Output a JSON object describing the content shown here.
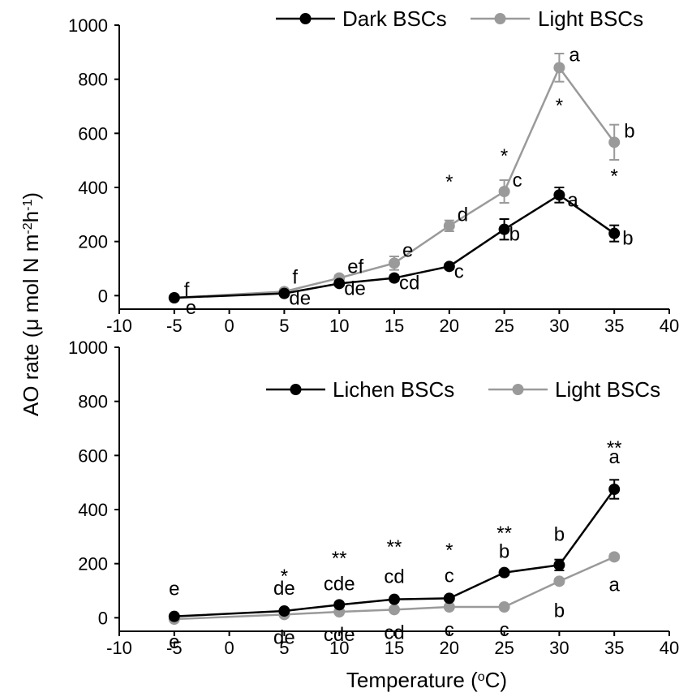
{
  "figure": {
    "ylabel_main": "AO rate (",
    "ylabel_mu": "μ",
    "ylabel_mid": " mol N m",
    "ylabel_sup1": "-2",
    "ylabel_h": "h",
    "ylabel_sup2": "-1",
    "ylabel_close": ")",
    "xlabel_main": "Temperature (",
    "xlabel_sup": "o",
    "xlabel_close": "C)"
  },
  "colors": {
    "dark": "#000000",
    "light": "#9a9a9a"
  },
  "chart_data": [
    {
      "type": "line",
      "panel": "top",
      "xlim": [
        -10,
        40
      ],
      "ylim": [
        -50,
        1000
      ],
      "xticks": [
        -10,
        -5,
        0,
        5,
        10,
        15,
        20,
        25,
        30,
        35,
        40
      ],
      "yticks": [
        0,
        200,
        400,
        600,
        800,
        1000
      ],
      "x": [
        -5,
        5,
        10,
        15,
        20,
        25,
        30,
        35
      ],
      "legend_position": "top-right",
      "series": [
        {
          "name": "Dark BSCs",
          "color": "#000000",
          "values": [
            -8,
            8,
            45,
            65,
            108,
            245,
            372,
            230
          ],
          "errors": [
            0,
            5,
            8,
            10,
            10,
            38,
            28,
            30
          ],
          "letters": [
            "e",
            "de",
            "de",
            "cd",
            "c",
            "b",
            "a",
            "b"
          ]
        },
        {
          "name": "Light BSCs",
          "color": "#9a9a9a",
          "values": [
            -8,
            15,
            65,
            120,
            258,
            385,
            843,
            567
          ],
          "errors": [
            0,
            8,
            10,
            25,
            20,
            42,
            52,
            65
          ],
          "letters": [
            "f",
            "f",
            "ef",
            "e",
            "d",
            "c",
            "a",
            "b"
          ]
        }
      ],
      "significance": [
        "",
        "",
        "",
        "",
        "*",
        "*",
        "*",
        "*"
      ]
    },
    {
      "type": "line",
      "panel": "bottom",
      "xlabel": "Temperature (°C)",
      "xlim": [
        -10,
        40
      ],
      "ylim": [
        -50,
        1000
      ],
      "xticks": [
        -10,
        -5,
        0,
        5,
        10,
        15,
        20,
        25,
        30,
        35,
        40
      ],
      "yticks": [
        0,
        200,
        400,
        600,
        800,
        1000
      ],
      "x": [
        -5,
        5,
        10,
        15,
        20,
        25,
        30,
        35
      ],
      "legend_position": "top-right",
      "series": [
        {
          "name": "Lichen BSCs",
          "color": "#000000",
          "values": [
            5,
            25,
            48,
            68,
            72,
            167,
            195,
            475
          ],
          "errors": [
            3,
            5,
            8,
            8,
            8,
            10,
            20,
            35
          ],
          "letters": [
            "e",
            "de",
            "cde",
            "cd",
            "c",
            "b",
            "b",
            "a"
          ]
        },
        {
          "name": "Light BSCs",
          "color": "#9a9a9a",
          "values": [
            -5,
            12,
            22,
            30,
            40,
            40,
            135,
            225
          ],
          "errors": [
            0,
            3,
            5,
            5,
            5,
            5,
            10,
            10
          ],
          "letters": [
            "e",
            "de",
            "cde",
            "cd",
            "c",
            "c",
            "b",
            "a"
          ]
        }
      ],
      "significance": [
        "",
        "*",
        "**",
        "**",
        "*",
        "**",
        "",
        "**"
      ]
    }
  ]
}
